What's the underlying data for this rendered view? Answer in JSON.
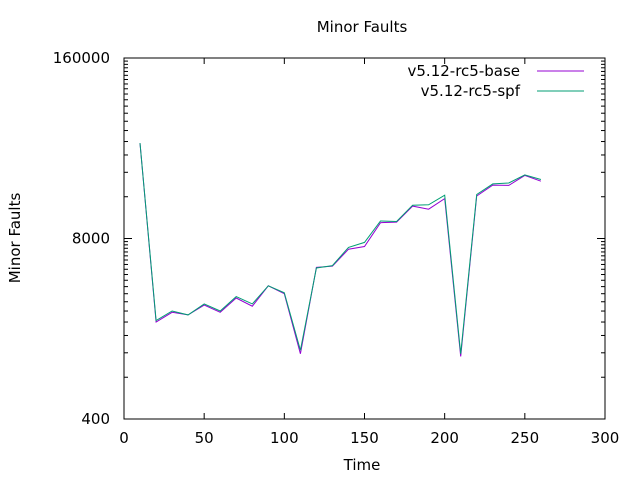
{
  "chart_data": {
    "type": "line",
    "title": "Minor Faults",
    "xlabel": "Time",
    "ylabel": "Minor Faults",
    "y_scale": "log",
    "xlim": [
      0,
      300
    ],
    "ylim": [
      400,
      160000
    ],
    "x_ticks": [
      0,
      50,
      100,
      150,
      200,
      250,
      300
    ],
    "x_tick_labels": [
      "0",
      "50",
      "100",
      "150",
      "200",
      "250",
      "300"
    ],
    "y_ticks": [
      400,
      8000,
      160000
    ],
    "y_tick_labels": [
      "400",
      "8000",
      "160000"
    ],
    "grid": false,
    "legend_position": "top-right",
    "series": [
      {
        "name": "v5.12-rc5-base",
        "color": "#9400d3",
        "x": [
          10,
          20,
          30,
          40,
          50,
          60,
          70,
          80,
          90,
          100,
          110,
          120,
          130,
          140,
          150,
          160,
          170,
          180,
          190,
          200,
          210,
          220,
          230,
          240,
          250,
          260
        ],
        "y": [
          39000,
          2000,
          2350,
          2250,
          2650,
          2350,
          2980,
          2600,
          3650,
          3200,
          1180,
          4950,
          5050,
          6700,
          7000,
          10400,
          10500,
          13700,
          13000,
          15500,
          1130,
          16200,
          19400,
          19300,
          22800,
          20700
        ]
      },
      {
        "name": "v5.12-rc5-spf",
        "color": "#009e73",
        "x": [
          10,
          20,
          30,
          40,
          50,
          60,
          70,
          80,
          90,
          100,
          110,
          120,
          130,
          140,
          150,
          160,
          170,
          180,
          190,
          200,
          210,
          220,
          230,
          240,
          250,
          260
        ],
        "y": [
          39000,
          2050,
          2400,
          2250,
          2700,
          2400,
          3050,
          2700,
          3650,
          3250,
          1250,
          4900,
          5100,
          6900,
          7500,
          10700,
          10600,
          13900,
          14000,
          16400,
          1180,
          16600,
          19800,
          20100,
          23000,
          21300
        ]
      }
    ]
  }
}
